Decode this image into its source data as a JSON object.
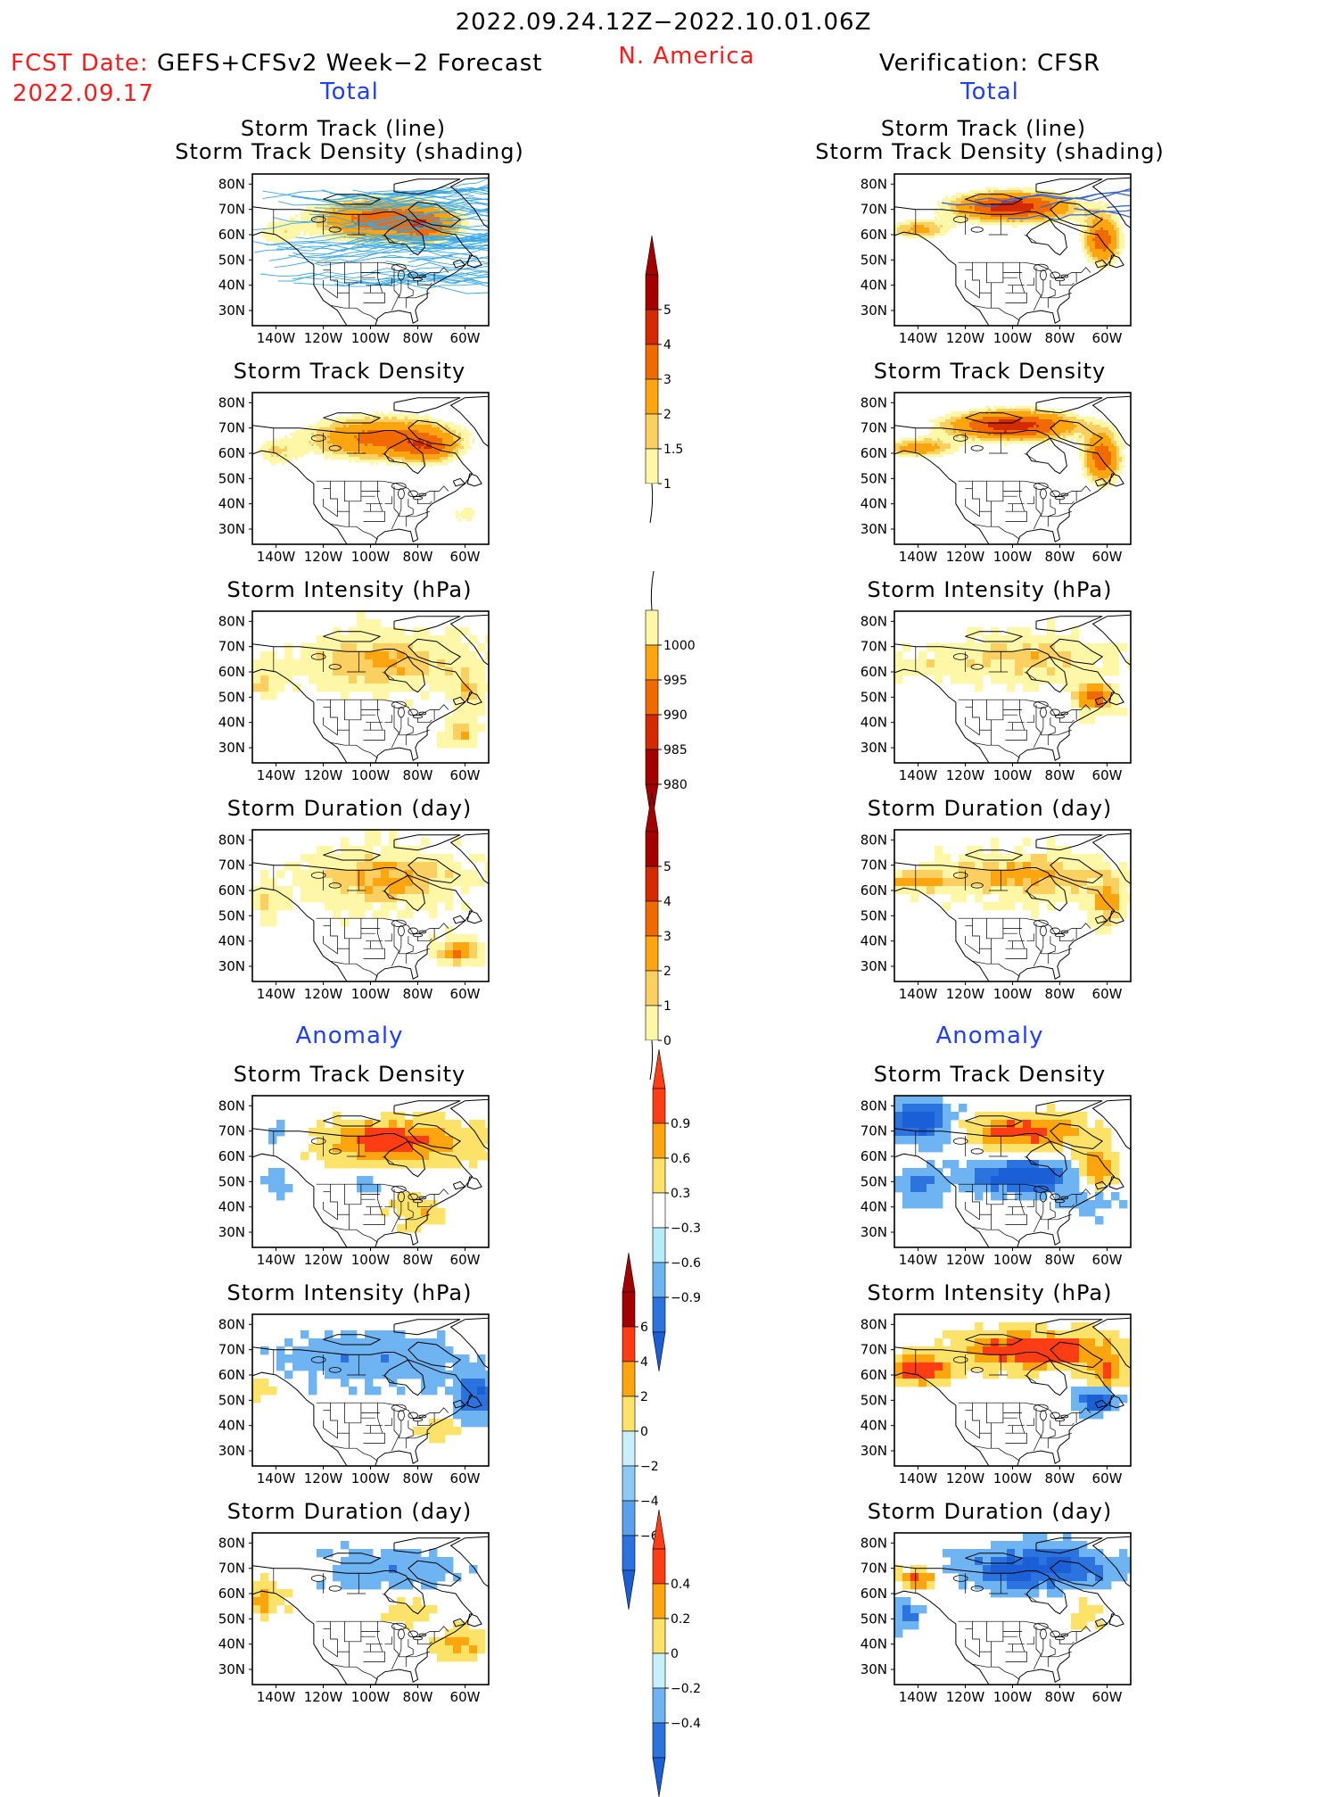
{
  "header": {
    "period": "2022.09.24.12Z−2022.10.01.06Z",
    "region": "N. America",
    "fcst_label": "FCST Date:",
    "fcst_model": "GEFS+CFSv2 Week−2 Forecast",
    "fcst_date": "2022.09.17",
    "verification": "Verification: CFSR"
  },
  "sections": {
    "total": "Total",
    "anomaly": "Anomaly"
  },
  "panel_titles": {
    "track_line": "Storm Track (line)",
    "track_density_shading": "Storm Track Density (shading)",
    "track_density": "Storm Track Density",
    "intensity": "Storm Intensity (hPa)",
    "duration": "Storm Duration (day)"
  },
  "axes": {
    "lat_labels": [
      "80N",
      "70N",
      "60N",
      "50N",
      "40N",
      "30N"
    ],
    "lon_labels": [
      "140W",
      "120W",
      "100W",
      "80W",
      "60W"
    ]
  },
  "colorbars": [
    {
      "id": "cb-density",
      "levels": [
        "5",
        "4",
        "3",
        "2",
        "1.5",
        "1"
      ],
      "colors": [
        "#a50000",
        "#d42a00",
        "#f06a00",
        "#fca50f",
        "#fcd060",
        "#fff7a8"
      ],
      "top_arrow": "#a50000",
      "bottom_arrow": "none"
    },
    {
      "id": "cb-intensity",
      "levels": [
        "1000",
        "995",
        "990",
        "985",
        "980"
      ],
      "colors": [
        "#fff7a8",
        "#fca50f",
        "#f06a00",
        "#d42a00",
        "#a50000"
      ],
      "top_arrow": "none",
      "bottom_arrow": "#a50000"
    },
    {
      "id": "cb-duration",
      "levels": [
        "5",
        "4",
        "3",
        "2",
        "1",
        "0"
      ],
      "colors": [
        "#a50000",
        "#d42a00",
        "#f06a00",
        "#fca50f",
        "#fcd060",
        "#fff7a8"
      ],
      "top_arrow": "#a50000",
      "bottom_arrow": "none"
    },
    {
      "id": "cb-anom-density",
      "levels": [
        "0.9",
        "0.6",
        "0.3",
        "−0.3",
        "−0.6",
        "−0.9"
      ],
      "colors": [
        "#ff3d14",
        "#fca50f",
        "#fde26a",
        "#ffffff",
        "#b5ecf7",
        "#6fb4f2",
        "#2b73de"
      ],
      "top_arrow": "#ff3d14",
      "bottom_arrow": "#1a5fd6"
    },
    {
      "id": "cb-anom-intensity",
      "levels": [
        "6",
        "4",
        "2",
        "0",
        "−2",
        "−4",
        "−6"
      ],
      "colors": [
        "#a50000",
        "#ff3d14",
        "#fca50f",
        "#fde26a",
        "#c8f0fa",
        "#8cc9f5",
        "#5aa0ec",
        "#2b73de"
      ],
      "top_arrow": "#a50000",
      "bottom_arrow": "#1a5fd6"
    },
    {
      "id": "cb-anom-duration",
      "levels": [
        "0.4",
        "0.2",
        "0",
        "−0.2",
        "−0.4"
      ],
      "colors": [
        "#ff3d14",
        "#fca50f",
        "#fde26a",
        "#c8f0fa",
        "#6fb4f2",
        "#2b73de"
      ],
      "top_arrow": "#ff3d14",
      "bottom_arrow": "#1a5fd6"
    }
  ],
  "palette": {
    "track_line_color": "#3aa8e8",
    "track_line_color_verif": "#3a64d8",
    "map_line": "#000000",
    "frame": "#000000"
  }
}
